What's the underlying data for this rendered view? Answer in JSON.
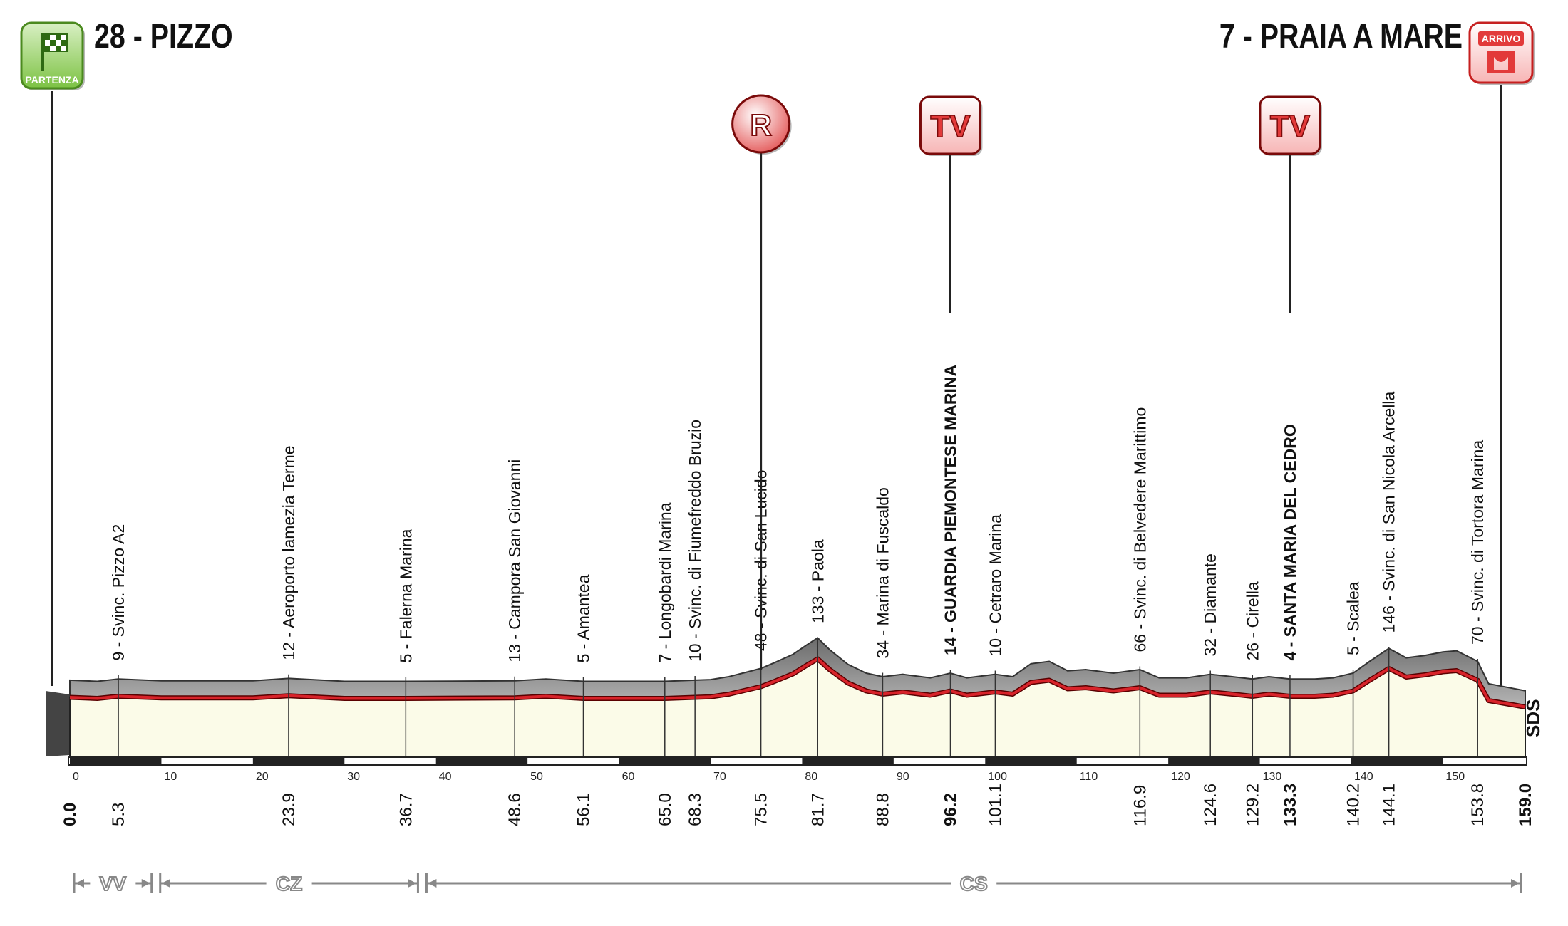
{
  "stage": {
    "start": {
      "badge": "PARTENZA",
      "title": "28 - PIZZO"
    },
    "finish": {
      "badge": "ARRIVO",
      "title": "7 - PRAIA A MARE"
    }
  },
  "markers": [
    {
      "type": "R",
      "label": "R",
      "km": 75.5
    },
    {
      "type": "TV",
      "label": "TV",
      "km": 96.2
    },
    {
      "type": "TV",
      "label": "TV",
      "km": 133.3
    }
  ],
  "sds_label": "SDS",
  "chart_data": {
    "type": "area",
    "xlim": [
      0,
      159
    ],
    "axis_ticks": [
      0,
      10,
      20,
      30,
      40,
      50,
      60,
      70,
      80,
      90,
      100,
      110,
      120,
      130,
      140,
      150
    ],
    "profile": {
      "x": [
        0,
        3,
        5.3,
        10,
        20,
        23.9,
        30,
        36.7,
        48.6,
        52,
        56.1,
        65,
        68.3,
        70,
        72,
        74,
        75.5,
        77,
        79,
        80.5,
        81.7,
        83,
        85,
        87,
        88.8,
        91,
        94,
        96.2,
        98,
        101.1,
        103,
        105,
        107,
        109,
        111,
        114,
        116.9,
        119,
        122,
        124.6,
        127,
        129.2,
        131,
        133.3,
        136,
        138,
        140.2,
        142,
        144.1,
        146,
        148,
        150,
        151.5,
        153.8,
        155,
        157,
        159
      ],
      "y": [
        28,
        26,
        30,
        27,
        27,
        31,
        26,
        26,
        27,
        30,
        26,
        26,
        28,
        29,
        34,
        42,
        48,
        58,
        72,
        88,
        100,
        80,
        55,
        40,
        34,
        38,
        32,
        40,
        32,
        38,
        34,
        56,
        60,
        44,
        46,
        40,
        46,
        32,
        32,
        38,
        34,
        30,
        34,
        30,
        30,
        32,
        40,
        60,
        82,
        66,
        70,
        76,
        78,
        60,
        22,
        16,
        10
      ]
    },
    "waypoints": [
      {
        "km": 0.0,
        "km_label": "0.0",
        "name": "",
        "major": true
      },
      {
        "km": 5.3,
        "km_label": "5.3",
        "name": "9 - Svinc. Pizzo A2",
        "major": false
      },
      {
        "km": 23.9,
        "km_label": "23.9",
        "name": "12 - Aeroporto lamezia Terme",
        "major": false
      },
      {
        "km": 36.7,
        "km_label": "36.7",
        "name": "5 - Falerna Marina",
        "major": false
      },
      {
        "km": 48.6,
        "km_label": "48.6",
        "name": "13 - Campora San Giovanni",
        "major": false
      },
      {
        "km": 56.1,
        "km_label": "56.1",
        "name": "5 - Amantea",
        "major": false
      },
      {
        "km": 65.0,
        "km_label": "65.0",
        "name": "7 - Longobardi Marina",
        "major": false
      },
      {
        "km": 68.3,
        "km_label": "68.3",
        "name": "10 - Svinc. di Fiumefreddo Bruzio",
        "major": false
      },
      {
        "km": 75.5,
        "km_label": "75.5",
        "name": "48 - Svinc. di San Lucido",
        "major": false
      },
      {
        "km": 81.7,
        "km_label": "81.7",
        "name": "133 - Paola",
        "major": false
      },
      {
        "km": 88.8,
        "km_label": "88.8",
        "name": "34 - Marina di Fuscaldo",
        "major": false
      },
      {
        "km": 96.2,
        "km_label": "96.2",
        "name": "14 - GUARDIA PIEMONTESE MARINA",
        "major": true
      },
      {
        "km": 101.1,
        "km_label": "101.1",
        "name": "10 - Cetraro Marina",
        "major": false
      },
      {
        "km": 116.9,
        "km_label": "116.9",
        "name": "66 - Svinc. di Belvedere Marittimo",
        "major": false
      },
      {
        "km": 124.6,
        "km_label": "124.6",
        "name": "32 - Diamante",
        "major": false
      },
      {
        "km": 129.2,
        "km_label": "129.2",
        "name": "26 - Cirella",
        "major": false
      },
      {
        "km": 133.3,
        "km_label": "133.3",
        "name": "4 - SANTA MARIA DEL CEDRO",
        "major": true
      },
      {
        "km": 140.2,
        "km_label": "140.2",
        "name": "5 - Scalea",
        "major": false
      },
      {
        "km": 144.1,
        "km_label": "144.1",
        "name": "146 - Svinc. di San Nicola Arcella",
        "major": false
      },
      {
        "km": 153.8,
        "km_label": "153.8",
        "name": "70 - Svinc. di Tortora Marina",
        "major": false
      },
      {
        "km": 159.0,
        "km_label": "159.0",
        "name": "",
        "major": true
      }
    ],
    "regions": [
      {
        "code": "VV",
        "from": 0,
        "to": 9.4
      },
      {
        "code": "CZ",
        "from": 9.4,
        "to": 38.5
      },
      {
        "code": "CS",
        "from": 38.5,
        "to": 159
      }
    ]
  },
  "colors": {
    "start_badge": "#7cc243",
    "finish_badge": "#e23a3a",
    "route_line": "#d8232a",
    "profile_fill": "#fbfbe8",
    "terrain_fill": "#9a9a9a"
  }
}
